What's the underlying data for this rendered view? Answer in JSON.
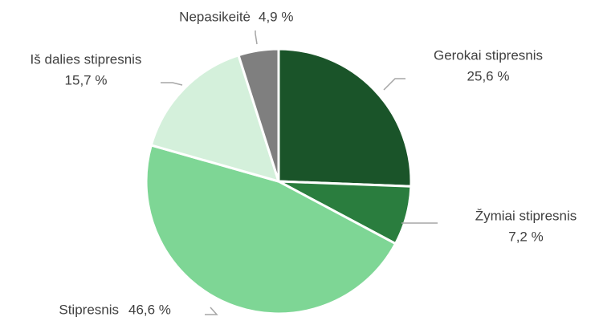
{
  "chart_data": {
    "type": "pie",
    "categories": [
      "Gerokai stipresnis",
      "Žymiai stipresnis",
      "Stipresnis",
      "Iš dalies stipresnis",
      "Nepasikeitė"
    ],
    "values": [
      25.6,
      7.2,
      46.6,
      15.7,
      4.9
    ],
    "value_labels": [
      "25,6 %",
      "7,2 %",
      "46,6 %",
      "15,7 %",
      "4,9 %"
    ],
    "colors": [
      "#1a5429",
      "#2a7d3e",
      "#7ed695",
      "#d4f0db",
      "#7f7f7f"
    ]
  }
}
